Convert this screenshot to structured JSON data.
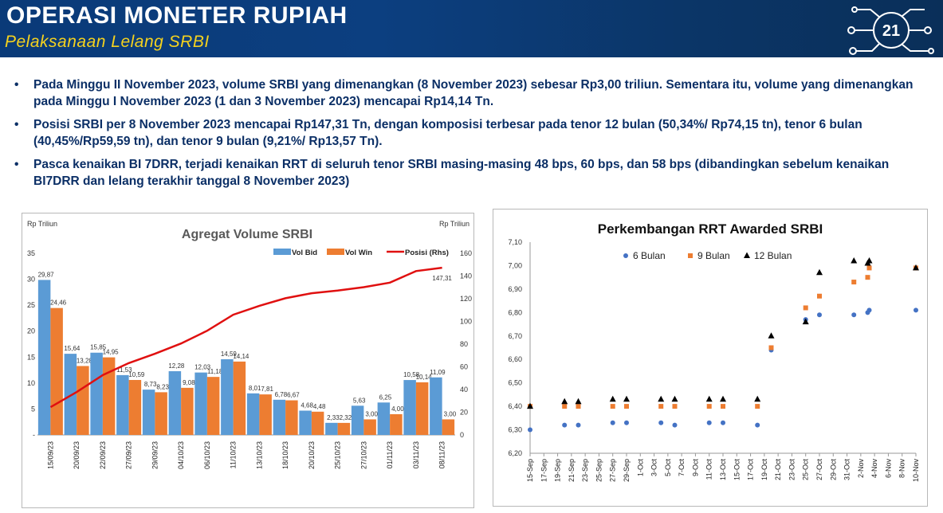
{
  "header": {
    "title": "OPERASI MONETER RUPIAH",
    "subtitle": "Pelaksanaan Lelang SRBI",
    "page_number": "21"
  },
  "bullets": [
    "Pada Minggu II November 2023, volume SRBI yang dimenangkan (8 November 2023) sebesar Rp3,00 triliun. Sementara itu, volume yang dimenangkan pada Minggu I November 2023 (1 dan 3 November 2023) mencapai Rp14,14 Tn.",
    "Posisi SRBI per 8 November 2023 mencapai Rp147,31 Tn, dengan komposisi terbesar pada tenor 12 bulan (50,34%/ Rp74,15 tn), tenor 6 bulan (40,45%/Rp59,59 tn), dan tenor 9 bulan (9,21%/ Rp13,57 Tn).",
    "Pasca kenaikan BI 7DRR, terjadi kenaikan RRT di seluruh tenor SRBI masing-masing 48 bps, 60 bps, dan 58 bps (dibandingkan sebelum kenaikan BI7DRR dan lelang terakhir tanggal 8 November 2023)"
  ],
  "colors": {
    "header_bg": "#0b3a78",
    "subtitle": "#f5d21e",
    "bullet_text": "#0b2f66",
    "vol_bid": "#5b9bd5",
    "vol_win": "#ed7d31",
    "posisi": "#e01010",
    "tenor_6": "#4472c4",
    "tenor_9": "#ed7d31",
    "tenor_12": "#000000"
  },
  "chart_data": [
    {
      "type": "bar",
      "title": "Agregat Volume SRBI",
      "ylabel": "Rp Triliun",
      "ylabel_right": "Rp Triliun",
      "ylim": [
        0,
        35
      ],
      "ylim_right": [
        0,
        160
      ],
      "yticks": [
        "-",
        "5",
        "10",
        "15",
        "20",
        "25",
        "30",
        "35"
      ],
      "yticks_right": [
        "0",
        "20",
        "40",
        "60",
        "80",
        "100",
        "120",
        "140",
        "160"
      ],
      "legend_position": "top-right",
      "categories": [
        "15/09/23",
        "20/09/23",
        "22/09/23",
        "27/09/23",
        "29/09/23",
        "04/10/23",
        "06/10/23",
        "11/10/23",
        "13/10/23",
        "18/10/23",
        "20/10/23",
        "25/10/23",
        "27/10/23",
        "01/11/23",
        "03/11/23",
        "08/11/23"
      ],
      "series": [
        {
          "name": "Vol Bid",
          "kind": "bar",
          "values": [
            29.87,
            15.64,
            15.85,
            11.53,
            8.73,
            12.28,
            12.03,
            14.59,
            8.01,
            6.78,
            4.68,
            2.33,
            5.63,
            6.25,
            10.58,
            11.09
          ],
          "labels": [
            "29,87",
            "15,64",
            "15,85",
            "11,53",
            "8,73",
            "12,28",
            "12,03",
            "14,59",
            "8,01",
            "6,78",
            "4,68",
            "2,33",
            "5,63",
            "6,25",
            "10,58",
            "11,09"
          ]
        },
        {
          "name": "Vol Win",
          "kind": "bar",
          "values": [
            24.46,
            13.28,
            14.95,
            10.59,
            8.23,
            9.08,
            11.18,
            14.14,
            7.81,
            6.67,
            4.48,
            2.32,
            3.0,
            4.0,
            10.14,
            3.0
          ],
          "labels": [
            "24,46",
            "13,28",
            "14,95",
            "10,59",
            "8,23",
            "9,08",
            "11,18",
            "14,14",
            "7,81",
            "6,67",
            "4,48",
            "2,32",
            "3,00",
            "4,00",
            "10,14",
            "3,00"
          ]
        },
        {
          "name": "Posisi (Rhs)",
          "kind": "line",
          "axis": "right",
          "values": [
            24.46,
            37.74,
            52.69,
            63.28,
            71.51,
            80.59,
            91.77,
            105.91,
            113.72,
            120.39,
            124.87,
            127.19,
            130.19,
            134.19,
            144.33,
            147.31
          ],
          "end_label": "147,31"
        }
      ]
    },
    {
      "type": "scatter",
      "title": "Perkembangan RRT Awarded SRBI",
      "ylim": [
        6.2,
        7.1
      ],
      "yticks": [
        "6,20",
        "6,30",
        "6,40",
        "6,50",
        "6,60",
        "6,70",
        "6,80",
        "6,90",
        "7,00",
        "7,10"
      ],
      "xlim": [
        "15-Sep",
        "10-Nov"
      ],
      "xticks": [
        "15-Sep",
        "17-Sep",
        "19-Sep",
        "21-Sep",
        "23-Sep",
        "25-Sep",
        "27-Sep",
        "29-Sep",
        "1-Oct",
        "3-Oct",
        "5-Oct",
        "7-Oct",
        "9-Oct",
        "11-Oct",
        "13-Oct",
        "15-Oct",
        "17-Oct",
        "19-Oct",
        "21-Oct",
        "23-Oct",
        "25-Oct",
        "27-Oct",
        "29-Oct",
        "31-Oct",
        "2-Nov",
        "4-Nov",
        "6-Nov",
        "8-Nov",
        "10-Nov"
      ],
      "legend_position": "top",
      "x": [
        "15-Sep",
        "20-Sep",
        "22-Sep",
        "27-Sep",
        "29-Sep",
        "4-Oct",
        "6-Oct",
        "11-Oct",
        "13-Oct",
        "18-Oct",
        "20-Oct",
        "25-Oct",
        "27-Oct",
        "1-Nov",
        "3-Nov",
        "3-Nov",
        "10-Nov"
      ],
      "series": [
        {
          "name": "6 Bulan",
          "marker": "circle",
          "values": [
            6.3,
            6.32,
            6.32,
            6.33,
            6.33,
            6.33,
            6.32,
            6.33,
            6.33,
            6.32,
            6.64,
            6.77,
            6.79,
            6.79,
            6.8,
            6.81,
            6.81
          ]
        },
        {
          "name": "9 Bulan",
          "marker": "square",
          "values": [
            6.4,
            6.4,
            6.4,
            6.4,
            6.4,
            6.4,
            6.4,
            6.4,
            6.4,
            6.4,
            6.65,
            6.82,
            6.87,
            6.93,
            6.95,
            6.99,
            6.99
          ]
        },
        {
          "name": "12 Bulan",
          "marker": "triangle",
          "values": [
            6.4,
            6.42,
            6.42,
            6.43,
            6.43,
            6.43,
            6.43,
            6.43,
            6.43,
            6.43,
            6.7,
            6.76,
            6.97,
            7.02,
            7.01,
            7.02,
            6.99
          ]
        }
      ]
    }
  ]
}
